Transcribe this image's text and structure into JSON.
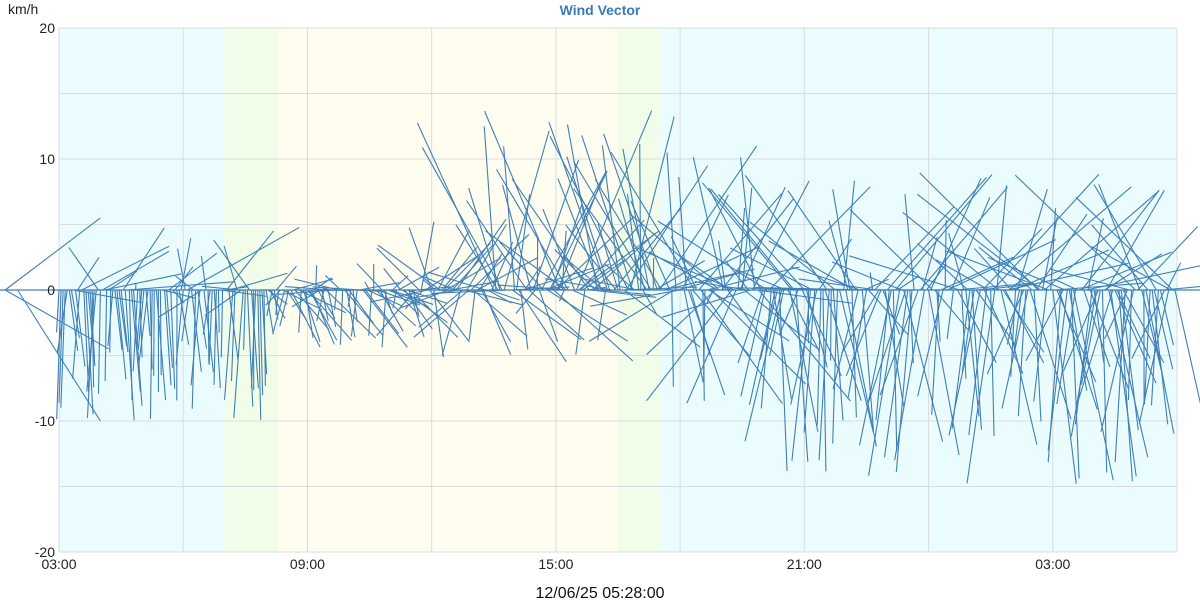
{
  "chart_data": {
    "type": "line",
    "title": "Wind Vector",
    "ylabel": "km/h",
    "ylim": [
      -20,
      20
    ],
    "y_ticks": [
      "20",
      "10",
      "0",
      "-10",
      "-20"
    ],
    "x_ticks": [
      "03:00",
      "09:00",
      "15:00",
      "21:00",
      "03:00"
    ],
    "x_range_hours": [
      0,
      27
    ],
    "grid": true,
    "legend": "none",
    "series": [
      {
        "color": "#3f7fb6",
        "segments": "wind vectors, one line per sample from the zero axis"
      }
    ],
    "background_bands": [
      {
        "from_hour": 0,
        "to_hour": 4,
        "color": "#eafcfd"
      },
      {
        "from_hour": 4,
        "to_hour": 5.3,
        "color": "#f2fde9"
      },
      {
        "from_hour": 5.3,
        "to_hour": 13.5,
        "color": "#fefdf0"
      },
      {
        "from_hour": 13.5,
        "to_hour": 14.5,
        "color": "#f2fde9"
      },
      {
        "from_hour": 14.5,
        "to_hour": 27,
        "color": "#eafcfd"
      }
    ]
  },
  "footer": {
    "timestamp": "12/06/25 05:28:00"
  }
}
